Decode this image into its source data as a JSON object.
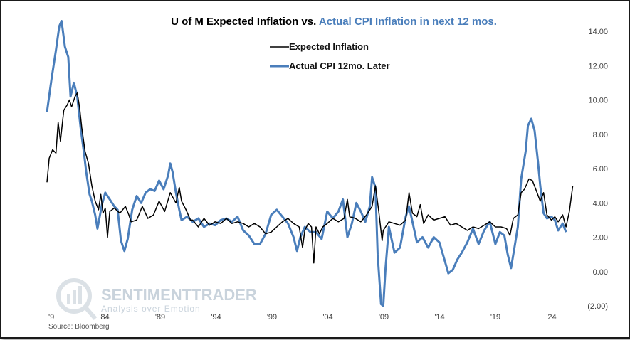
{
  "chart_data": {
    "type": "line",
    "title_parts": [
      {
        "text": "U of M Expected Inflation vs. ",
        "color": "#000000"
      },
      {
        "text": "Actual CPI Inflation in next 12 mos.",
        "color": "#4a7ebb"
      }
    ],
    "x_tick_labels": [
      "'9",
      "'84",
      "'89",
      "'94",
      "'99",
      "'04",
      "'09",
      "'14",
      "'19",
      "'24"
    ],
    "y_tick_labels": [
      {
        "value": 14,
        "label": "14.00",
        "color": "#404040"
      },
      {
        "value": 12,
        "label": "12.00",
        "color": "#404040"
      },
      {
        "value": 10,
        "label": "10.00",
        "color": "#404040"
      },
      {
        "value": 8,
        "label": "8.00",
        "color": "#404040"
      },
      {
        "value": 6,
        "label": "6.00",
        "color": "#404040"
      },
      {
        "value": 4,
        "label": "4.00",
        "color": "#404040"
      },
      {
        "value": 2,
        "label": "2.00",
        "color": "#404040"
      },
      {
        "value": 0,
        "label": "0.00",
        "color": "#404040"
      },
      {
        "value": -2,
        "label": "(2.00)",
        "color": "#ff0000"
      }
    ],
    "x_range": [
      1979.0,
      2026.5
    ],
    "ylim": [
      -2,
      14
    ],
    "grid": false,
    "legend_position": "top-center",
    "series": [
      {
        "name": "Expected Inflation",
        "color": "#000000",
        "points": [
          [
            1979.0,
            5.2
          ],
          [
            1979.2,
            6.6
          ],
          [
            1979.5,
            7.1
          ],
          [
            1979.8,
            6.9
          ],
          [
            1980.0,
            8.7
          ],
          [
            1980.2,
            7.6
          ],
          [
            1980.5,
            9.4
          ],
          [
            1980.8,
            9.7
          ],
          [
            1981.0,
            10.0
          ],
          [
            1981.2,
            9.6
          ],
          [
            1981.5,
            10.2
          ],
          [
            1981.7,
            10.4
          ],
          [
            1981.9,
            9.6
          ],
          [
            1982.1,
            8.4
          ],
          [
            1982.4,
            7.0
          ],
          [
            1982.7,
            6.3
          ],
          [
            1983.0,
            5.0
          ],
          [
            1983.3,
            4.1
          ],
          [
            1983.6,
            3.6
          ],
          [
            1983.8,
            4.5
          ],
          [
            1984.0,
            3.4
          ],
          [
            1984.2,
            3.7
          ],
          [
            1984.4,
            2.0
          ],
          [
            1984.6,
            3.5
          ],
          [
            1985.0,
            3.7
          ],
          [
            1985.5,
            3.4
          ],
          [
            1986.0,
            3.8
          ],
          [
            1986.3,
            3.3
          ],
          [
            1986.5,
            2.9
          ],
          [
            1987.0,
            3.0
          ],
          [
            1987.5,
            3.8
          ],
          [
            1988.0,
            3.1
          ],
          [
            1988.5,
            3.3
          ],
          [
            1989.0,
            4.1
          ],
          [
            1989.5,
            3.5
          ],
          [
            1990.0,
            4.6
          ],
          [
            1990.5,
            4.0
          ],
          [
            1990.8,
            4.9
          ],
          [
            1991.0,
            4.1
          ],
          [
            1991.4,
            3.6
          ],
          [
            1991.8,
            3.0
          ],
          [
            1992.0,
            3.0
          ],
          [
            1992.5,
            2.6
          ],
          [
            1993.0,
            3.1
          ],
          [
            1993.5,
            2.7
          ],
          [
            1994.0,
            2.9
          ],
          [
            1994.5,
            2.8
          ],
          [
            1995.0,
            3.1
          ],
          [
            1995.5,
            2.8
          ],
          [
            1996.0,
            2.9
          ],
          [
            1996.5,
            2.8
          ],
          [
            1997.0,
            2.6
          ],
          [
            1997.5,
            2.8
          ],
          [
            1998.0,
            2.6
          ],
          [
            1998.5,
            2.2
          ],
          [
            1999.0,
            2.3
          ],
          [
            1999.5,
            2.6
          ],
          [
            2000.0,
            2.9
          ],
          [
            2000.5,
            3.1
          ],
          [
            2001.0,
            2.8
          ],
          [
            2001.5,
            2.6
          ],
          [
            2001.8,
            1.4
          ],
          [
            2002.0,
            2.4
          ],
          [
            2002.3,
            2.8
          ],
          [
            2002.6,
            2.6
          ],
          [
            2002.8,
            0.5
          ],
          [
            2003.0,
            2.6
          ],
          [
            2003.3,
            2.2
          ],
          [
            2003.6,
            2.6
          ],
          [
            2004.0,
            2.8
          ],
          [
            2004.5,
            3.1
          ],
          [
            2005.0,
            2.9
          ],
          [
            2005.5,
            3.1
          ],
          [
            2005.8,
            4.2
          ],
          [
            2006.0,
            3.2
          ],
          [
            2006.5,
            3.1
          ],
          [
            2007.0,
            2.9
          ],
          [
            2007.5,
            3.3
          ],
          [
            2008.0,
            3.8
          ],
          [
            2008.3,
            5.0
          ],
          [
            2008.6,
            3.5
          ],
          [
            2008.9,
            1.8
          ],
          [
            2009.0,
            2.4
          ],
          [
            2009.5,
            2.9
          ],
          [
            2010.0,
            2.8
          ],
          [
            2010.5,
            2.7
          ],
          [
            2011.0,
            3.0
          ],
          [
            2011.3,
            4.6
          ],
          [
            2011.6,
            3.4
          ],
          [
            2012.0,
            3.2
          ],
          [
            2012.3,
            3.9
          ],
          [
            2012.6,
            2.8
          ],
          [
            2013.0,
            3.3
          ],
          [
            2013.5,
            3.0
          ],
          [
            2014.0,
            3.1
          ],
          [
            2014.5,
            3.2
          ],
          [
            2015.0,
            2.7
          ],
          [
            2015.5,
            2.8
          ],
          [
            2016.0,
            2.6
          ],
          [
            2016.5,
            2.4
          ],
          [
            2017.0,
            2.6
          ],
          [
            2017.5,
            2.5
          ],
          [
            2018.0,
            2.7
          ],
          [
            2018.5,
            2.9
          ],
          [
            2019.0,
            2.6
          ],
          [
            2019.5,
            2.6
          ],
          [
            2020.0,
            2.5
          ],
          [
            2020.3,
            2.1
          ],
          [
            2020.6,
            3.1
          ],
          [
            2021.0,
            3.3
          ],
          [
            2021.3,
            4.6
          ],
          [
            2021.6,
            4.8
          ],
          [
            2022.0,
            5.4
          ],
          [
            2022.3,
            5.3
          ],
          [
            2022.6,
            4.8
          ],
          [
            2023.0,
            4.1
          ],
          [
            2023.3,
            4.6
          ],
          [
            2023.6,
            3.3
          ],
          [
            2024.0,
            3.0
          ],
          [
            2024.3,
            3.2
          ],
          [
            2024.6,
            2.9
          ],
          [
            2025.0,
            3.3
          ],
          [
            2025.3,
            2.6
          ],
          [
            2025.6,
            3.5
          ],
          [
            2025.9,
            5.0
          ]
        ]
      },
      {
        "name": "Actual CPI 12mo. Later",
        "color": "#4a7ebb",
        "points": [
          [
            1979.0,
            9.3
          ],
          [
            1979.4,
            11.2
          ],
          [
            1979.8,
            12.9
          ],
          [
            1980.1,
            14.3
          ],
          [
            1980.3,
            14.6
          ],
          [
            1980.6,
            13.1
          ],
          [
            1980.9,
            12.5
          ],
          [
            1981.1,
            10.2
          ],
          [
            1981.4,
            11.0
          ],
          [
            1981.7,
            10.2
          ],
          [
            1982.0,
            8.4
          ],
          [
            1982.3,
            6.9
          ],
          [
            1982.5,
            5.8
          ],
          [
            1982.8,
            4.5
          ],
          [
            1983.0,
            4.1
          ],
          [
            1983.3,
            3.3
          ],
          [
            1983.5,
            2.5
          ],
          [
            1983.9,
            3.9
          ],
          [
            1984.2,
            4.6
          ],
          [
            1984.6,
            4.2
          ],
          [
            1985.0,
            3.8
          ],
          [
            1985.3,
            3.6
          ],
          [
            1985.6,
            1.8
          ],
          [
            1985.9,
            1.2
          ],
          [
            1986.2,
            1.9
          ],
          [
            1986.6,
            3.6
          ],
          [
            1987.0,
            4.4
          ],
          [
            1987.4,
            4.0
          ],
          [
            1987.8,
            4.6
          ],
          [
            1988.2,
            4.8
          ],
          [
            1988.6,
            4.7
          ],
          [
            1989.0,
            5.3
          ],
          [
            1989.4,
            4.8
          ],
          [
            1989.8,
            5.6
          ],
          [
            1990.0,
            6.3
          ],
          [
            1990.2,
            5.8
          ],
          [
            1990.5,
            4.6
          ],
          [
            1990.8,
            3.6
          ],
          [
            1991.0,
            3.0
          ],
          [
            1991.5,
            3.2
          ],
          [
            1992.0,
            2.9
          ],
          [
            1992.5,
            3.1
          ],
          [
            1993.0,
            2.6
          ],
          [
            1993.5,
            2.8
          ],
          [
            1994.0,
            2.7
          ],
          [
            1994.5,
            3.0
          ],
          [
            1995.0,
            3.1
          ],
          [
            1995.5,
            2.9
          ],
          [
            1996.0,
            3.2
          ],
          [
            1996.5,
            2.4
          ],
          [
            1997.0,
            2.1
          ],
          [
            1997.5,
            1.6
          ],
          [
            1998.0,
            1.6
          ],
          [
            1998.5,
            2.2
          ],
          [
            1999.0,
            3.3
          ],
          [
            1999.5,
            3.6
          ],
          [
            2000.0,
            3.2
          ],
          [
            2000.5,
            2.8
          ],
          [
            2001.0,
            2.0
          ],
          [
            2001.3,
            1.2
          ],
          [
            2001.6,
            2.0
          ],
          [
            2002.0,
            2.6
          ],
          [
            2002.5,
            2.3
          ],
          [
            2003.0,
            2.3
          ],
          [
            2003.5,
            1.9
          ],
          [
            2004.0,
            3.5
          ],
          [
            2004.5,
            3.1
          ],
          [
            2005.0,
            3.5
          ],
          [
            2005.4,
            4.2
          ],
          [
            2005.8,
            2.0
          ],
          [
            2006.2,
            2.8
          ],
          [
            2006.6,
            4.0
          ],
          [
            2007.0,
            3.5
          ],
          [
            2007.4,
            2.9
          ],
          [
            2007.8,
            3.8
          ],
          [
            2008.0,
            5.5
          ],
          [
            2008.3,
            4.9
          ],
          [
            2008.5,
            1.0
          ],
          [
            2008.8,
            -1.9
          ],
          [
            2009.0,
            -2.0
          ],
          [
            2009.2,
            0.2
          ],
          [
            2009.5,
            2.6
          ],
          [
            2010.0,
            1.1
          ],
          [
            2010.5,
            1.4
          ],
          [
            2011.0,
            3.2
          ],
          [
            2011.3,
            3.8
          ],
          [
            2011.6,
            2.9
          ],
          [
            2012.0,
            1.7
          ],
          [
            2012.5,
            2.0
          ],
          [
            2013.0,
            1.4
          ],
          [
            2013.5,
            2.0
          ],
          [
            2014.0,
            1.7
          ],
          [
            2014.5,
            0.6
          ],
          [
            2014.8,
            -0.1
          ],
          [
            2015.2,
            0.1
          ],
          [
            2015.6,
            0.7
          ],
          [
            2016.0,
            1.1
          ],
          [
            2016.5,
            1.7
          ],
          [
            2017.0,
            2.5
          ],
          [
            2017.5,
            1.6
          ],
          [
            2018.0,
            2.4
          ],
          [
            2018.5,
            2.9
          ],
          [
            2019.0,
            1.6
          ],
          [
            2019.4,
            2.3
          ],
          [
            2019.8,
            2.1
          ],
          [
            2020.1,
            1.0
          ],
          [
            2020.4,
            0.2
          ],
          [
            2020.7,
            1.4
          ],
          [
            2021.0,
            2.6
          ],
          [
            2021.3,
            5.4
          ],
          [
            2021.7,
            7.0
          ],
          [
            2021.9,
            8.5
          ],
          [
            2022.2,
            8.9
          ],
          [
            2022.5,
            8.2
          ],
          [
            2022.8,
            6.4
          ],
          [
            2023.0,
            5.0
          ],
          [
            2023.3,
            3.4
          ],
          [
            2023.6,
            3.1
          ],
          [
            2024.0,
            3.2
          ],
          [
            2024.3,
            3.0
          ],
          [
            2024.6,
            2.4
          ],
          [
            2025.0,
            2.8
          ],
          [
            2025.3,
            2.3
          ]
        ]
      }
    ]
  },
  "legend": [
    {
      "label": "Expected Inflation",
      "color": "#000000",
      "stroke": 1.5
    },
    {
      "label": "Actual CPI 12mo. Later",
      "color": "#4a7ebb",
      "stroke": 3
    }
  ],
  "watermark": {
    "main_a": "SENTIMENT",
    "main_b": "RADER",
    "sub": "Analysis over Emotion"
  },
  "source": "Source: Bloomberg"
}
